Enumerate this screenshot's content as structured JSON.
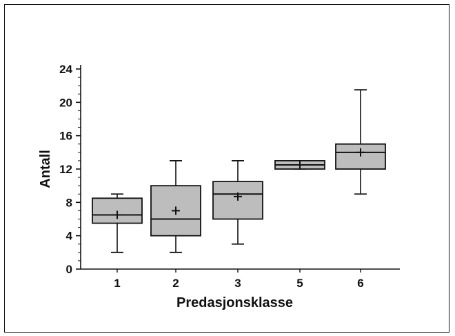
{
  "chart_data": {
    "type": "boxplot",
    "title": "",
    "xlabel": "Predasjonsklasse",
    "ylabel": "Antall",
    "ylim": [
      0,
      24
    ],
    "yticks": [
      0,
      4,
      8,
      12,
      16,
      20,
      24
    ],
    "categories": [
      "1",
      "2",
      "3",
      "5",
      "6"
    ],
    "boxes": [
      {
        "category": "1",
        "min": 2,
        "q1": 5.5,
        "median": 6.5,
        "q3": 8.5,
        "max": 9,
        "mean": 6.5
      },
      {
        "category": "2",
        "min": 2,
        "q1": 4,
        "median": 6,
        "q3": 10,
        "max": 13,
        "mean": 7
      },
      {
        "category": "3",
        "min": 3,
        "q1": 6,
        "median": 9,
        "q3": 10.5,
        "max": 13,
        "mean": 8.7
      },
      {
        "category": "5",
        "min": 12,
        "q1": 12,
        "median": 12.5,
        "q3": 13,
        "max": 13,
        "mean": 12.5
      },
      {
        "category": "6",
        "min": 9,
        "q1": 12,
        "median": 14,
        "q3": 15,
        "max": 21.5,
        "mean": 14
      }
    ],
    "grid": false,
    "legend": "none",
    "colors": {
      "box_fill": "#bdbdbd",
      "line": "#111111"
    }
  }
}
